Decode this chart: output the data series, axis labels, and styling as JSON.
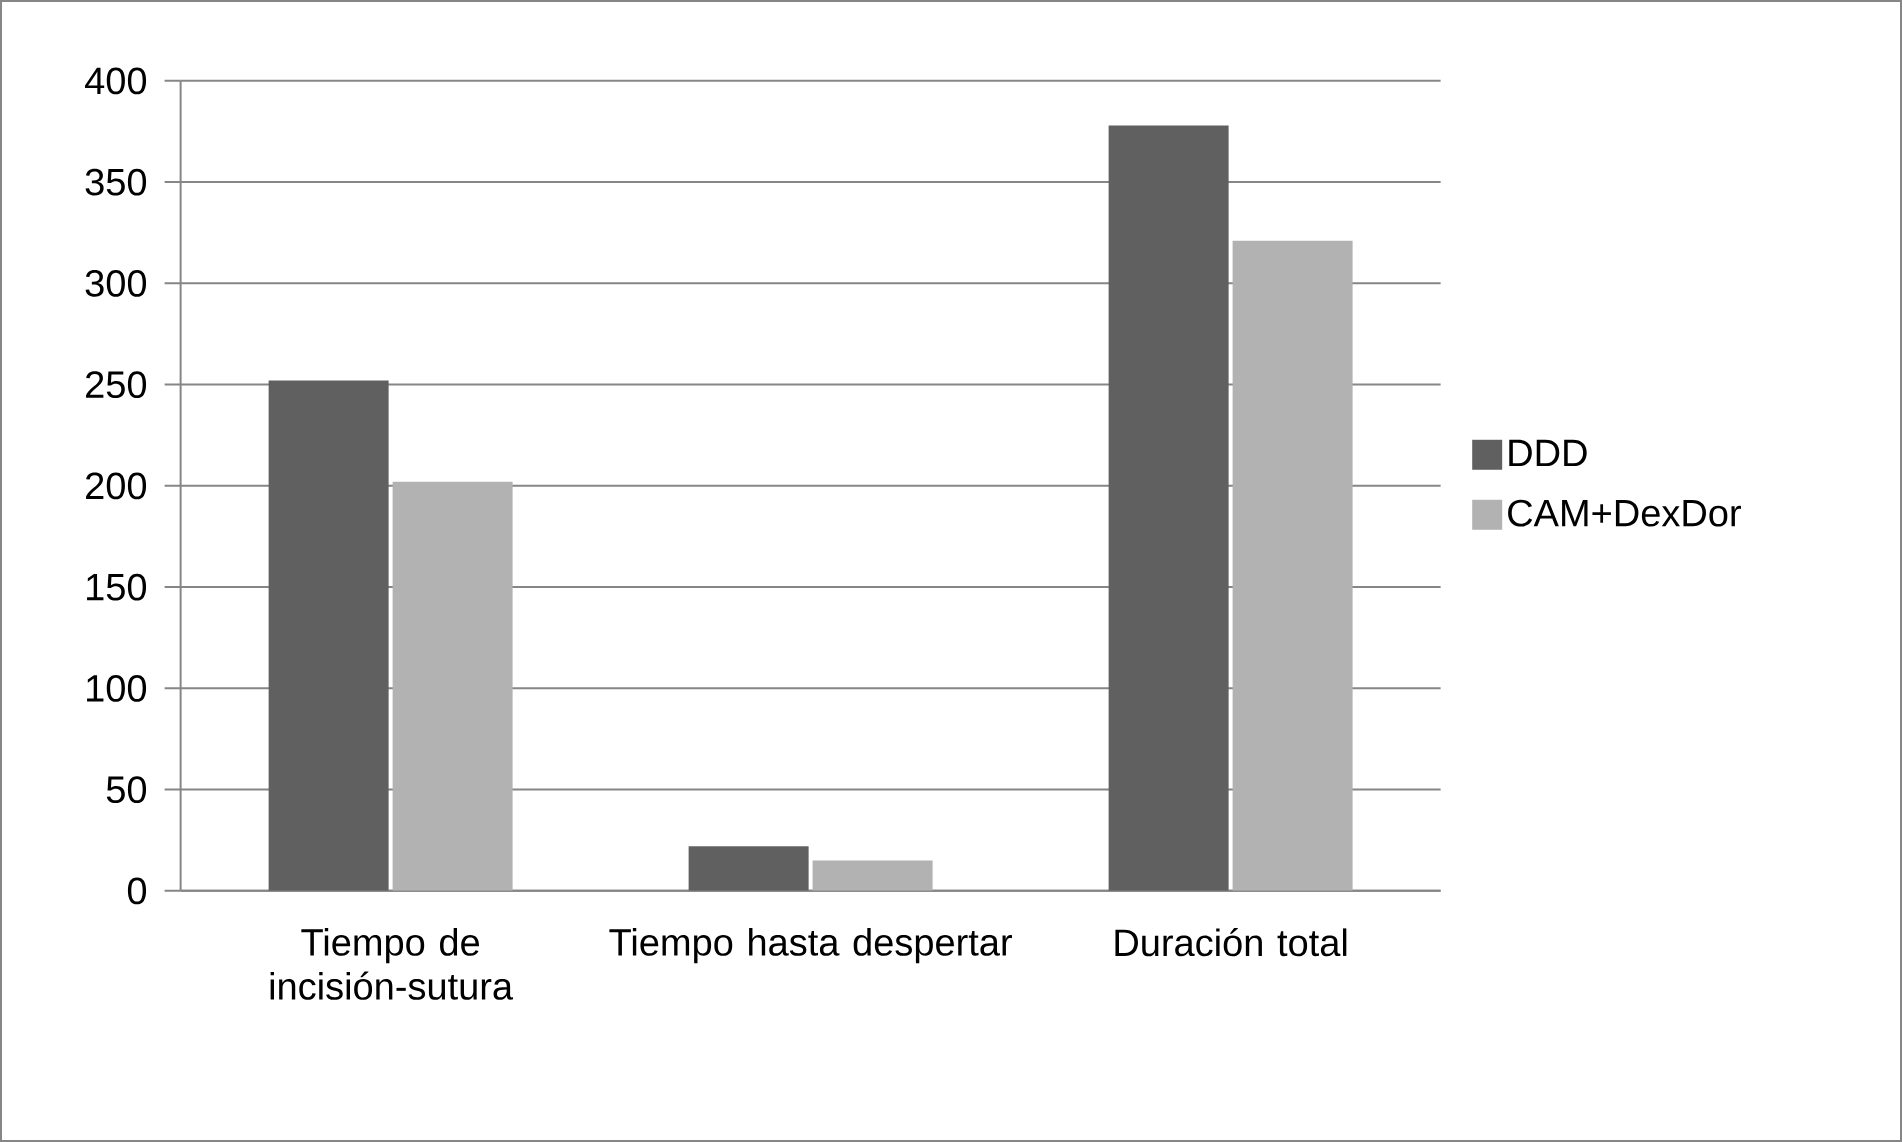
{
  "chart_data": {
    "type": "bar",
    "categories": [
      "Tiempo de incisión-sutura",
      "Tiempo hasta despertar",
      "Duración total"
    ],
    "series": [
      {
        "name": "DDD",
        "color": "#606060",
        "values": [
          252,
          22,
          378
        ]
      },
      {
        "name": "CAM+DexDor",
        "color": "#b2b2b2",
        "values": [
          202,
          15,
          321
        ]
      }
    ],
    "ylim": [
      0,
      400
    ],
    "yticks": [
      0,
      50,
      100,
      150,
      200,
      250,
      300,
      350,
      400
    ],
    "grid": "y",
    "legend": "right"
  }
}
